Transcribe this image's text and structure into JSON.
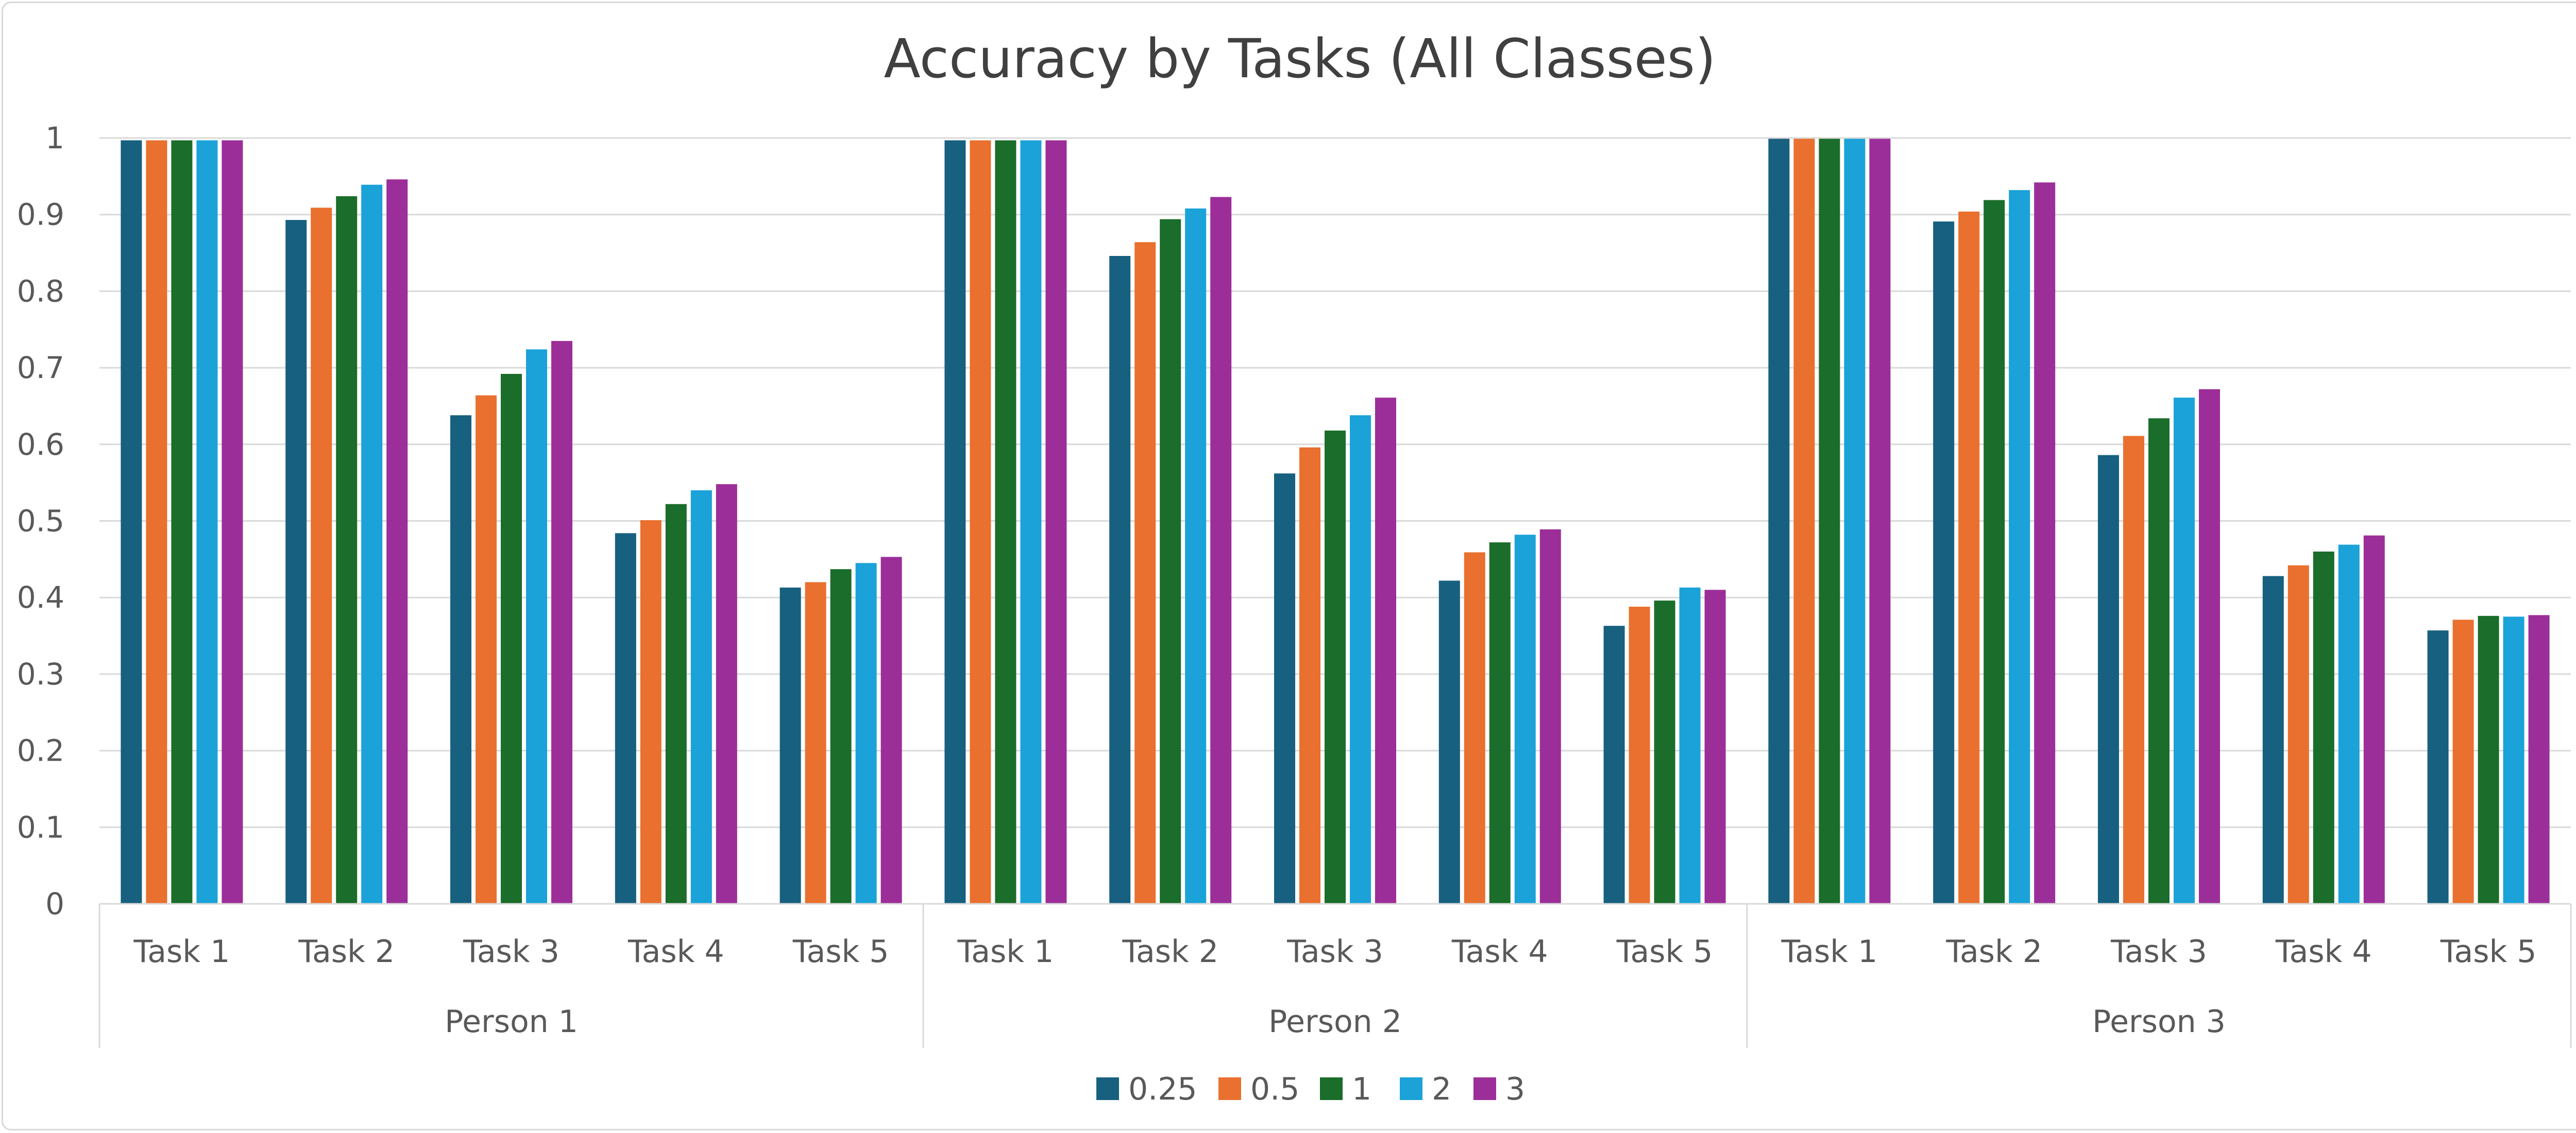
{
  "chart_data": {
    "type": "bar",
    "title": "Accuracy by Tasks (All Classes)",
    "xlabel": "",
    "ylabel": "",
    "ylim": [
      0,
      1
    ],
    "yticks": [
      "0",
      "0.1",
      "0.2",
      "0.3",
      "0.4",
      "0.5",
      "0.6",
      "0.7",
      "0.8",
      "0.9",
      "1"
    ],
    "grid": true,
    "legend_position": "bottom",
    "groups": [
      {
        "name": "Person 1",
        "categories": [
          "Task 1",
          "Task 2",
          "Task 3",
          "Task 4",
          "Task 5"
        ]
      },
      {
        "name": "Person 2",
        "categories": [
          "Task 1",
          "Task 2",
          "Task 3",
          "Task 4",
          "Task 5"
        ]
      },
      {
        "name": "Person 3",
        "categories": [
          "Task 1",
          "Task 2",
          "Task 3",
          "Task 4",
          "Task 5"
        ]
      }
    ],
    "series": [
      {
        "name": "0.25",
        "color": "#17607f",
        "values": [
          0.997,
          0.893,
          0.638,
          0.484,
          0.413,
          0.997,
          0.846,
          0.562,
          0.422,
          0.363,
          0.999,
          0.891,
          0.586,
          0.428,
          0.357
        ]
      },
      {
        "name": "0.5",
        "color": "#e9702e",
        "values": [
          0.997,
          0.909,
          0.664,
          0.501,
          0.42,
          0.997,
          0.864,
          0.596,
          0.459,
          0.388,
          0.999,
          0.904,
          0.611,
          0.442,
          0.371
        ]
      },
      {
        "name": "1",
        "color": "#1a6d2a",
        "values": [
          0.997,
          0.924,
          0.692,
          0.522,
          0.437,
          0.997,
          0.894,
          0.618,
          0.472,
          0.396,
          0.999,
          0.919,
          0.634,
          0.46,
          0.376
        ]
      },
      {
        "name": "2",
        "color": "#1aa2d9",
        "values": [
          0.997,
          0.939,
          0.724,
          0.54,
          0.445,
          0.997,
          0.908,
          0.638,
          0.482,
          0.413,
          0.999,
          0.932,
          0.661,
          0.469,
          0.375
        ]
      },
      {
        "name": "3",
        "color": "#9c2e99",
        "values": [
          0.997,
          0.946,
          0.735,
          0.548,
          0.453,
          0.997,
          0.923,
          0.661,
          0.489,
          0.41,
          0.999,
          0.942,
          0.672,
          0.481,
          0.377
        ]
      }
    ]
  }
}
